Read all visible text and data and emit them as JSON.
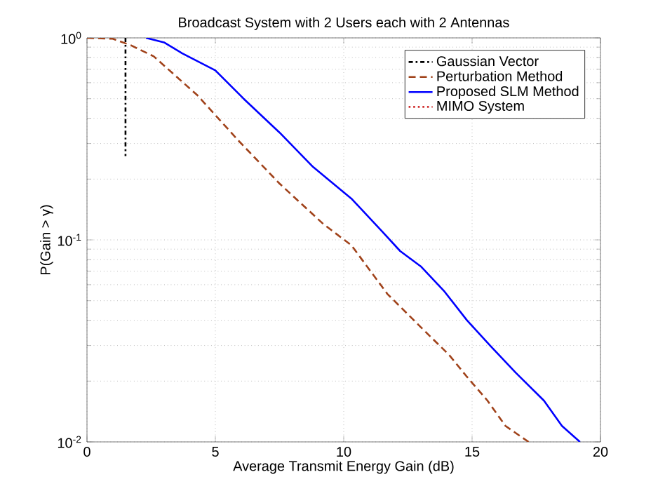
{
  "chart_data": {
    "type": "line",
    "title": "Broadcast System with 2 Users each with 2 Antennas",
    "xlabel": "Average Transmit Energy Gain (dB)",
    "ylabel": "P(Gain > γ)",
    "series": [
      {
        "name": "Gaussian Vector",
        "color": "#000000",
        "line_style": "dashdot",
        "x": [
          1.5,
          1.5
        ],
        "values": [
          1.0,
          0.26
        ]
      },
      {
        "name": "Perturbation Method",
        "color": "#a0421a",
        "line_style": "dashed",
        "x": [
          0,
          1.0,
          1.7,
          2.6,
          4.3,
          5.9,
          7.5,
          9.2,
          10.3,
          11.7,
          13.0,
          14.1,
          14.8,
          15.6,
          16.3,
          17.2
        ],
        "values": [
          1.0,
          0.99,
          0.92,
          0.81,
          0.52,
          0.31,
          0.19,
          0.12,
          0.094,
          0.054,
          0.037,
          0.027,
          0.021,
          0.016,
          0.012,
          0.01
        ]
      },
      {
        "name": "Proposed SLM Method",
        "color": "#0000ff",
        "line_style": "solid",
        "x": [
          2.3,
          3.0,
          3.7,
          5.0,
          6.1,
          7.5,
          8.8,
          10.3,
          11.5,
          12.2,
          13.0,
          13.9,
          14.8,
          15.7,
          16.7,
          17.8,
          18.5,
          19.2
        ],
        "values": [
          1.0,
          0.95,
          0.84,
          0.69,
          0.5,
          0.34,
          0.23,
          0.16,
          0.11,
          0.088,
          0.074,
          0.056,
          0.04,
          0.03,
          0.022,
          0.016,
          0.012,
          0.01
        ]
      },
      {
        "name": "MIMO System",
        "color": "#d03030",
        "line_style": "dotted"
      }
    ],
    "log": "y",
    "xlim": [
      0,
      20
    ],
    "ylim": [
      0.01,
      1
    ],
    "xticks": [
      0,
      5,
      10,
      15,
      20
    ],
    "yticks": [
      {
        "value": 0.01,
        "label": "10$^{-2}$"
      },
      {
        "value": 0.1,
        "label": "10$^{-1}$"
      },
      {
        "value": 1,
        "label": "10$^{0}$"
      }
    ],
    "grid": true,
    "legend": "top right"
  }
}
